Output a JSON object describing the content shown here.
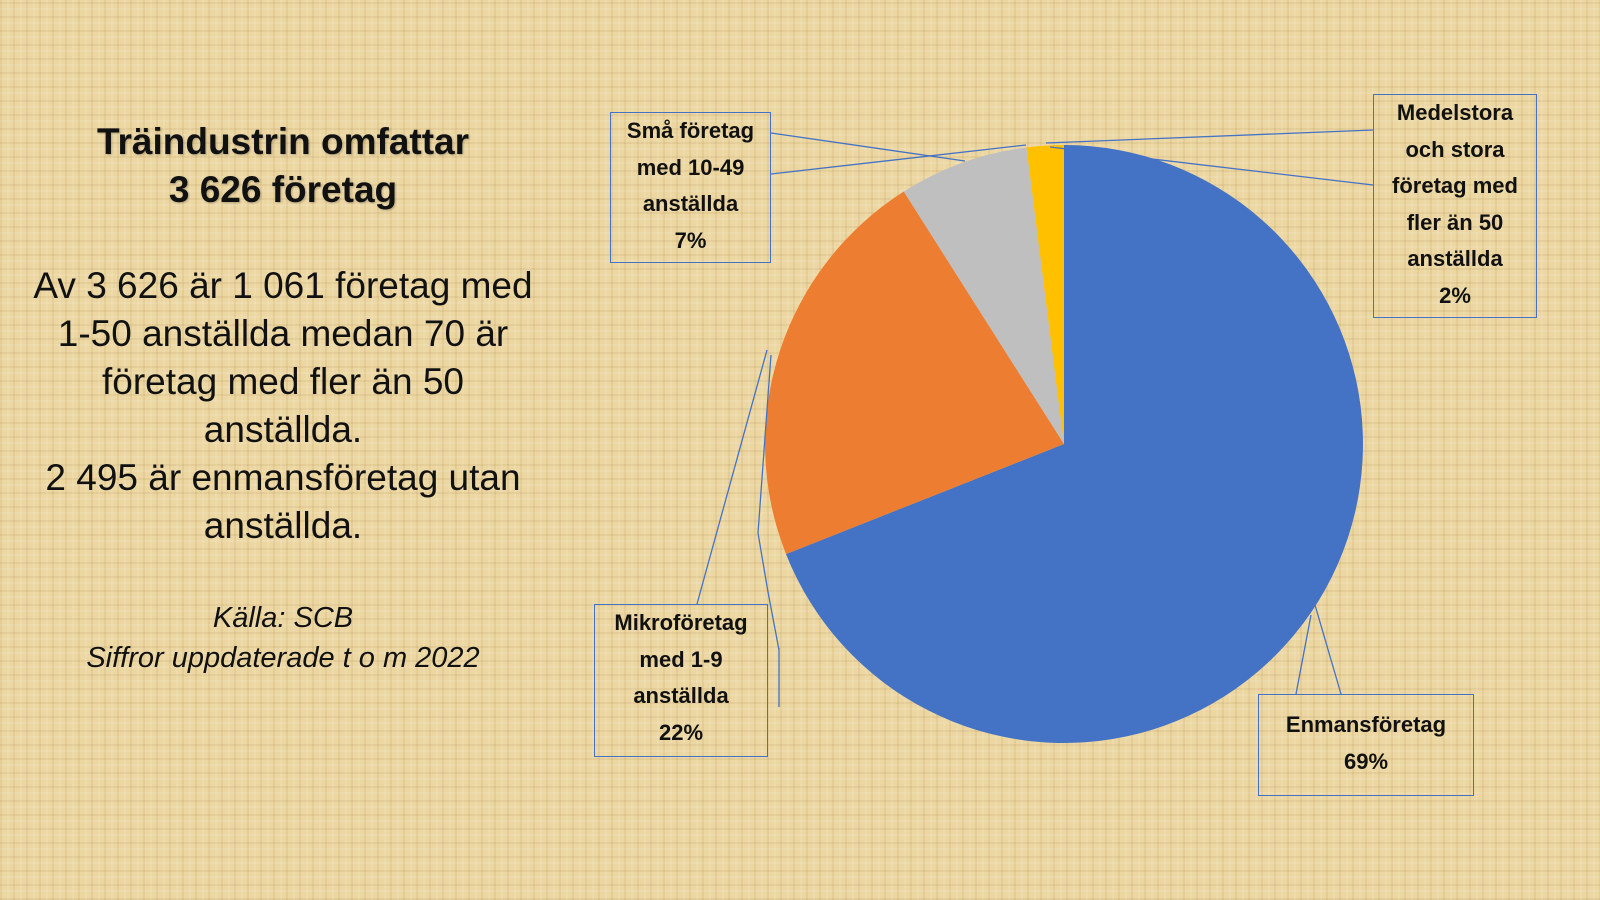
{
  "text_panel": {
    "title": [
      "Träindustrin omfattar",
      "3 626 företag"
    ],
    "body": [
      "Av 3 626 är 1 061 företag med",
      "1-50 anställda medan 70 är",
      "företag med fler än 50",
      "anställda.",
      "2 495 är enmansföretag utan",
      "anställda."
    ],
    "source": [
      "Källa: SCB",
      "Siffror uppdaterade t o m 2022"
    ]
  },
  "chart_data": {
    "type": "pie",
    "categories": [
      "Enmansföretag",
      "Mikroföretag med 1-9 anställda",
      "Små företag med 10-49 anställda",
      "Medelstora och stora företag med fler än 50 anställda"
    ],
    "values": [
      69,
      22,
      7,
      2
    ],
    "value_labels": [
      "69%",
      "22%",
      "7%",
      "2%"
    ],
    "colors": [
      "#4472c4",
      "#ed7d31",
      "#bfbfbf",
      "#ffc000"
    ]
  }
}
